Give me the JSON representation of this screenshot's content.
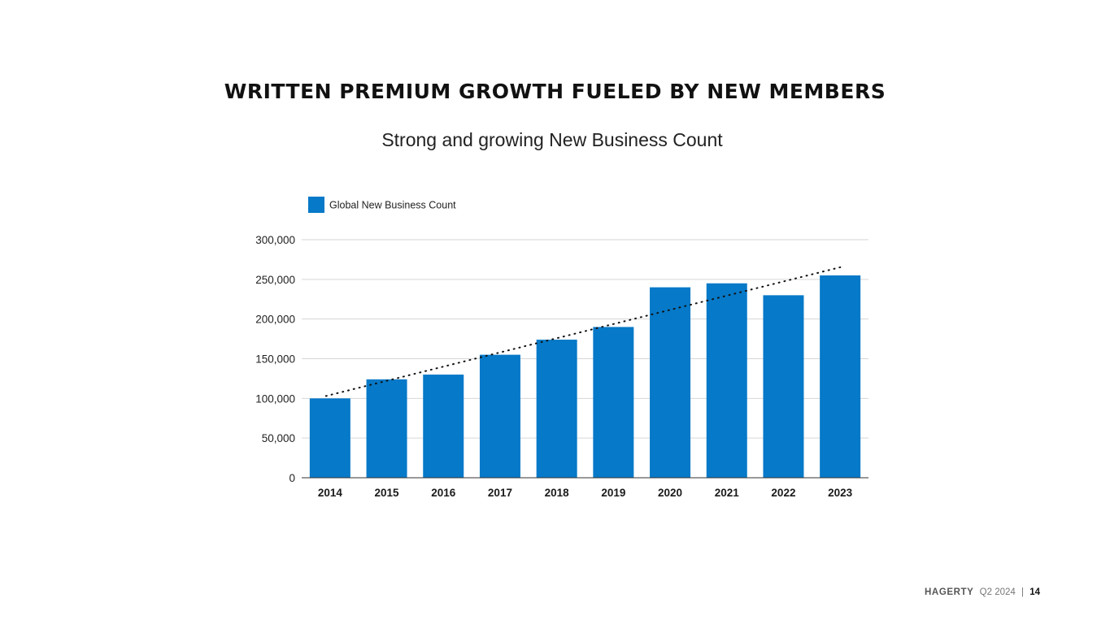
{
  "slide": {
    "headline": "WRITTEN PREMIUM GROWTH FUELED BY NEW MEMBERS",
    "subtitle": "Strong and growing New Business Count"
  },
  "footer": {
    "brand": "HAGERTY",
    "period": "Q2 2024",
    "separator": "|",
    "page_number": "14"
  },
  "colors": {
    "bar": "#0679c8",
    "gridline": "#d6d6d6",
    "axis": "#333333",
    "trendline": "#111111"
  },
  "chart_data": {
    "type": "bar",
    "title": "Strong and growing New Business Count",
    "categories": [
      "2014",
      "2015",
      "2016",
      "2017",
      "2018",
      "2019",
      "2020",
      "2021",
      "2022",
      "2023"
    ],
    "series": [
      {
        "name": "Global New Business Count",
        "values": [
          100000,
          124000,
          130000,
          155000,
          174000,
          190000,
          240000,
          245000,
          230000,
          255000
        ]
      }
    ],
    "trendline": {
      "style": "dotted",
      "type": "linear",
      "start_value": 103000,
      "end_value": 266000
    },
    "ylim": [
      0,
      300000
    ],
    "yticks": [
      "0",
      "50,000",
      "100,000",
      "150,000",
      "200,000",
      "250,000",
      "300,000"
    ],
    "ytick_values": [
      0,
      50000,
      100000,
      150000,
      200000,
      250000,
      300000
    ],
    "grid": true,
    "legend": "top-left",
    "xlabel": "",
    "ylabel": ""
  }
}
